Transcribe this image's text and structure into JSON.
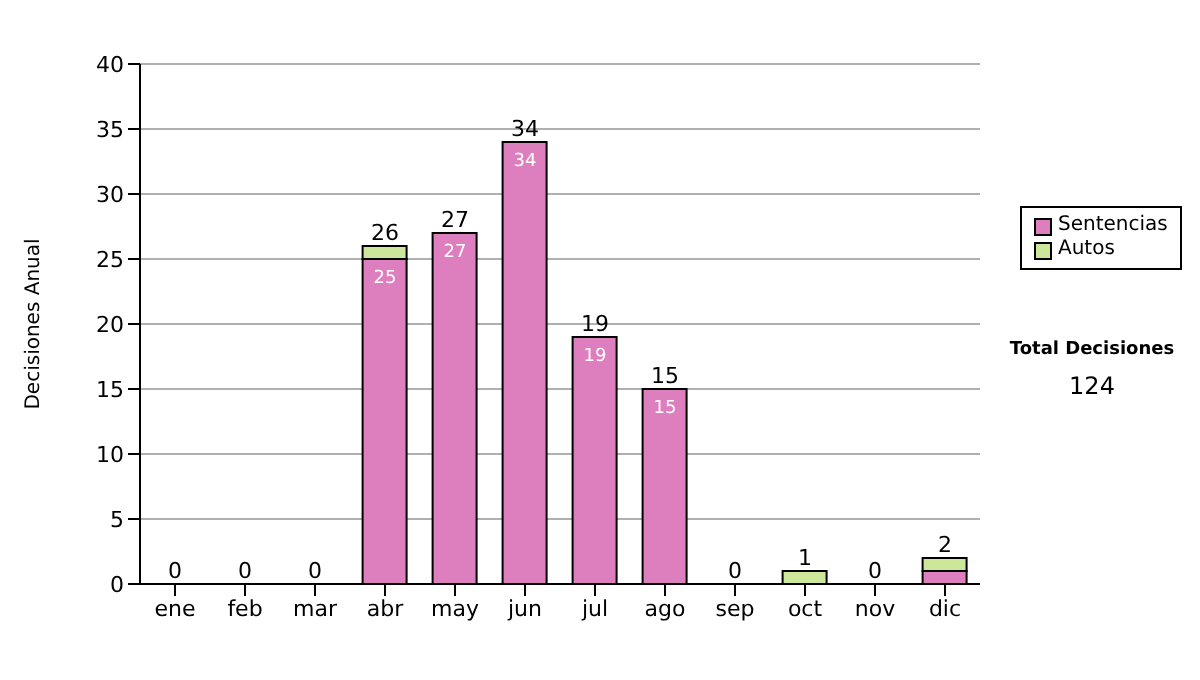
{
  "chart_data": {
    "type": "bar",
    "ylabel": "Decisiones Anual",
    "categories": [
      "ene",
      "feb",
      "mar",
      "abr",
      "may",
      "jun",
      "jul",
      "ago",
      "sep",
      "oct",
      "nov",
      "dic"
    ],
    "series": [
      {
        "name": "Sentencias",
        "color": "#dd7fbf",
        "values": [
          0,
          0,
          0,
          25,
          27,
          34,
          19,
          15,
          0,
          0,
          0,
          1
        ],
        "value_labels": [
          null,
          null,
          null,
          "25",
          "27",
          "34",
          "19",
          "15",
          null,
          null,
          null,
          null
        ]
      },
      {
        "name": "Autos",
        "color": "#cce69a",
        "values": [
          0,
          0,
          0,
          1,
          0,
          0,
          0,
          0,
          0,
          1,
          0,
          1
        ]
      }
    ],
    "stacked": true,
    "totals": [
      "0",
      "0",
      "0",
      "26",
      "27",
      "34",
      "19",
      "15",
      "0",
      "1",
      "0",
      "2"
    ],
    "ylim": [
      0,
      40
    ],
    "yticks": [
      0,
      5,
      10,
      15,
      20,
      25,
      30,
      35,
      40
    ],
    "grid": "y",
    "legend": "right",
    "annotations": [
      "Total Decisiones",
      "124"
    ]
  }
}
